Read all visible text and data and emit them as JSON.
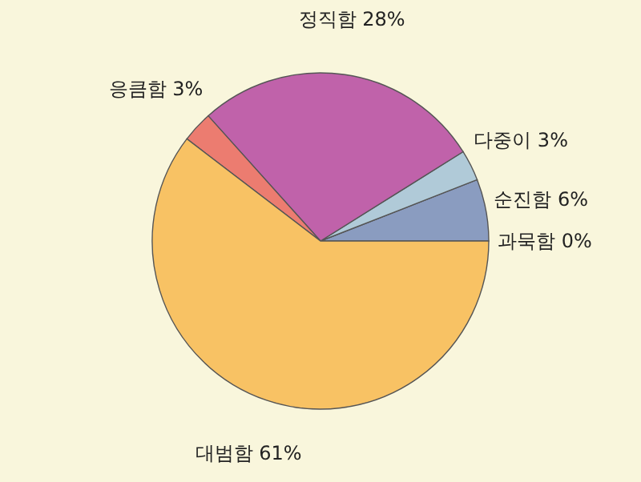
{
  "chart_data": {
    "type": "pie",
    "categories": [
      "과묵함",
      "순진함",
      "다중이",
      "정직함",
      "응큼함",
      "대범함"
    ],
    "values": [
      0,
      6,
      3,
      28,
      3,
      61
    ],
    "value_labels": [
      "0%",
      "6%",
      "3%",
      "28%",
      "3%",
      "61%"
    ],
    "colors": [
      "#5a6e9a",
      "#8a9cc0",
      "#b0cad8",
      "#c062aa",
      "#ec7c70",
      "#f8c264"
    ]
  }
}
